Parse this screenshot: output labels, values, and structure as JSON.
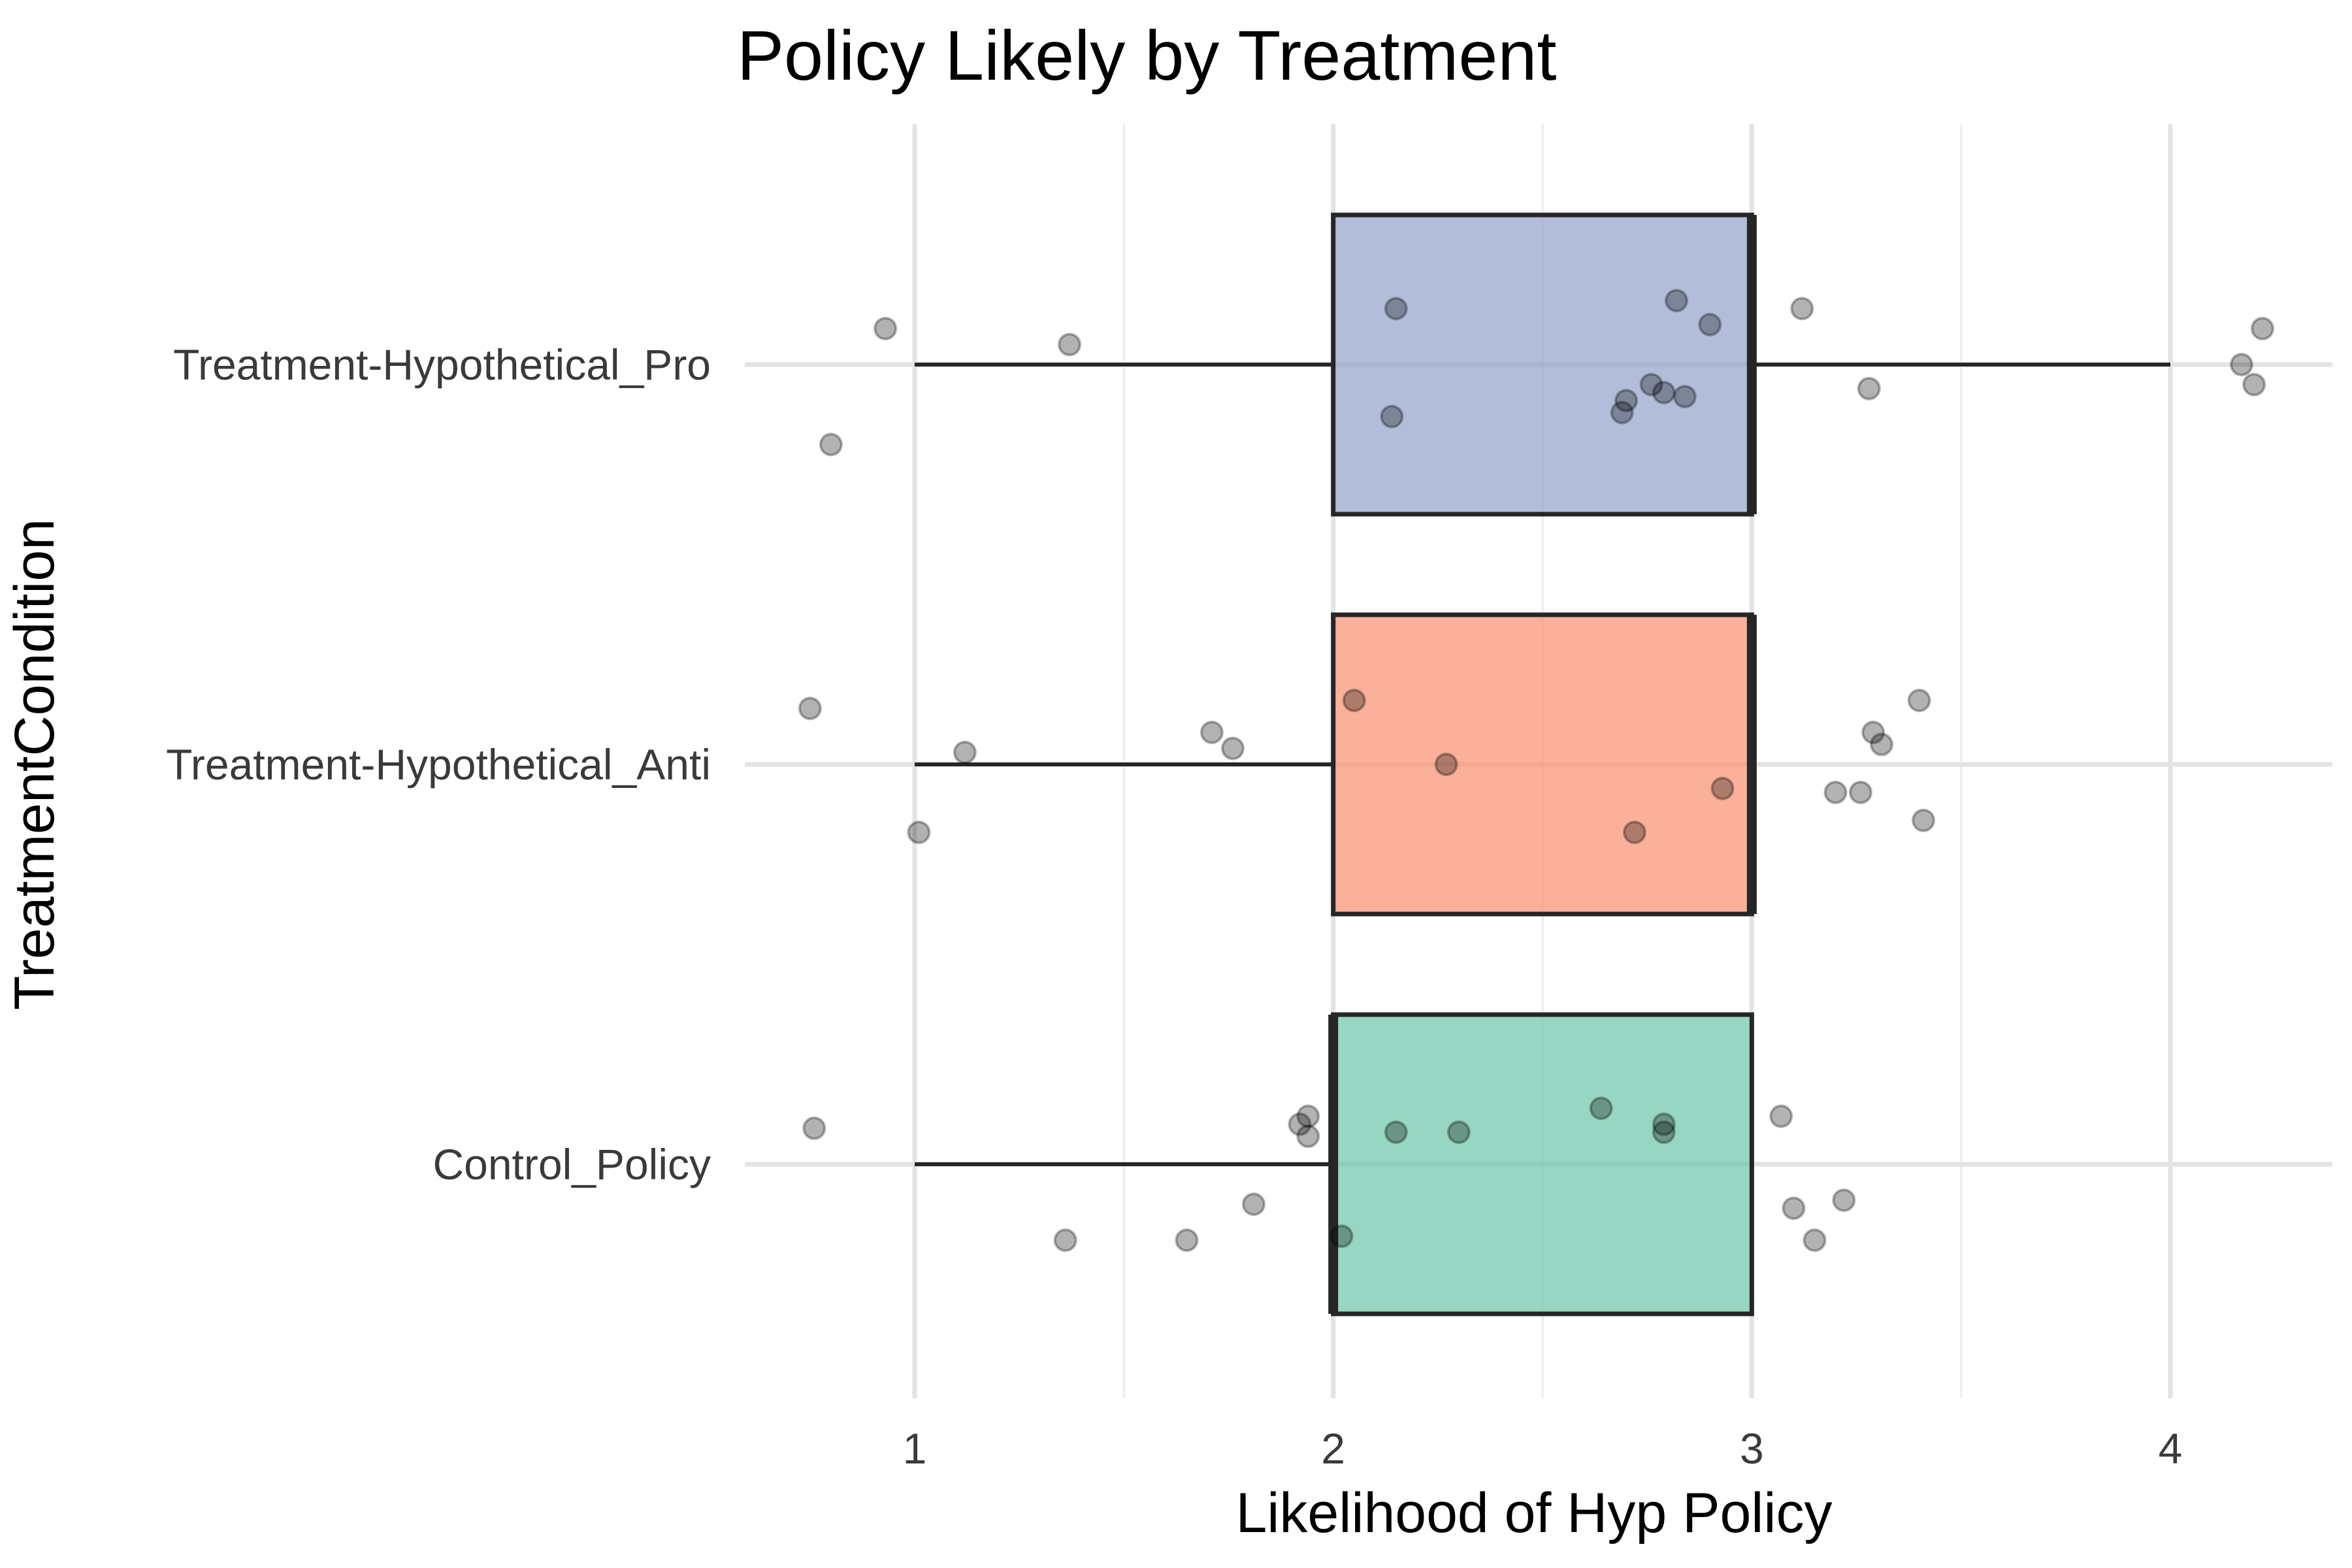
{
  "chart_data": {
    "type": "boxplot",
    "orientation": "horizontal",
    "title": "Policy Likely by Treatment",
    "xlabel": "Likelihood of Hyp Policy",
    "ylabel": "TreatmentCondition",
    "xlim": [
      0.63,
      4.37
    ],
    "x_ticks": [
      1,
      2,
      3,
      4
    ],
    "x_tick_labels": [
      "1",
      "2",
      "3",
      "4"
    ],
    "grid": true,
    "legend": "none",
    "categories": [
      "Treatment-Hypothetical_Pro",
      "Treatment-Hypothetical_Anti",
      "Control_Policy"
    ],
    "series": [
      {
        "category": "Treatment-Hypothetical_Pro",
        "color": "#8d9dc9",
        "min": 1,
        "q1": 2,
        "median": 3,
        "q3": 3,
        "max": 4,
        "points": [
          [
            0.93,
            0.09
          ],
          [
            1.37,
            0.05
          ],
          [
            0.8,
            -0.2
          ],
          [
            2.15,
            0.14
          ],
          [
            2.82,
            0.16
          ],
          [
            2.9,
            0.1
          ],
          [
            3.12,
            0.14
          ],
          [
            2.76,
            -0.05
          ],
          [
            2.7,
            -0.09
          ],
          [
            2.69,
            -0.12
          ],
          [
            2.79,
            -0.07
          ],
          [
            2.84,
            -0.08
          ],
          [
            2.14,
            -0.13
          ],
          [
            3.28,
            -0.06
          ],
          [
            4.22,
            0.09
          ],
          [
            4.17,
            0.0
          ],
          [
            4.2,
            -0.05
          ]
        ]
      },
      {
        "category": "Treatment-Hypothetical_Anti",
        "color": "#f78b68",
        "min": 1,
        "q1": 2,
        "median": 3,
        "q3": 3,
        "max": 3,
        "points": [
          [
            0.75,
            0.14
          ],
          [
            1.12,
            0.03
          ],
          [
            1.01,
            -0.17
          ],
          [
            1.71,
            0.08
          ],
          [
            1.76,
            0.04
          ],
          [
            2.05,
            0.16
          ],
          [
            2.27,
            0.0
          ],
          [
            2.93,
            -0.06
          ],
          [
            2.72,
            -0.17
          ],
          [
            3.4,
            0.16
          ],
          [
            3.29,
            0.08
          ],
          [
            3.31,
            0.05
          ],
          [
            3.2,
            -0.07
          ],
          [
            3.26,
            -0.07
          ],
          [
            3.41,
            -0.14
          ]
        ]
      },
      {
        "category": "Control_Policy",
        "color": "#66c2a5",
        "min": 1,
        "q1": 2,
        "median": 2,
        "q3": 3,
        "max": 3,
        "points": [
          [
            0.76,
            0.09
          ],
          [
            1.94,
            0.12
          ],
          [
            1.92,
            0.1
          ],
          [
            1.94,
            0.07
          ],
          [
            2.15,
            0.08
          ],
          [
            2.3,
            0.08
          ],
          [
            2.64,
            0.14
          ],
          [
            2.79,
            0.1
          ],
          [
            2.79,
            0.08
          ],
          [
            3.07,
            0.12
          ],
          [
            1.81,
            -0.1
          ],
          [
            1.36,
            -0.19
          ],
          [
            1.65,
            -0.19
          ],
          [
            2.02,
            -0.18
          ],
          [
            3.1,
            -0.11
          ],
          [
            3.22,
            -0.09
          ],
          [
            3.15,
            -0.19
          ]
        ]
      }
    ]
  }
}
